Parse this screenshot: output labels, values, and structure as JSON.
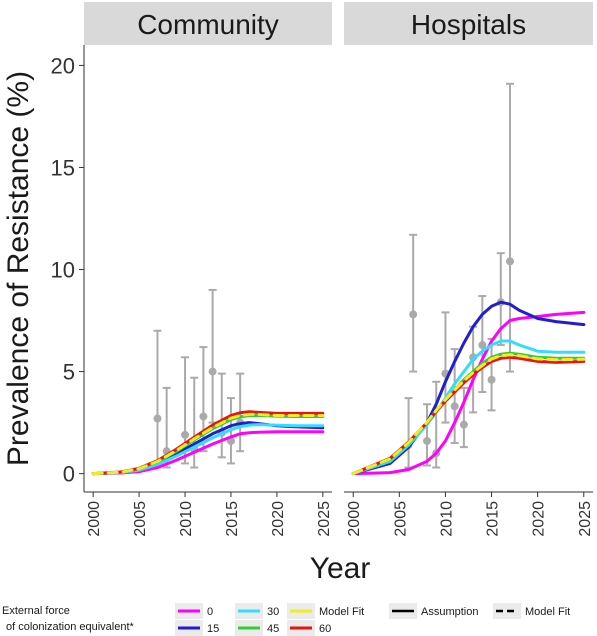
{
  "chart_data": {
    "type": "line",
    "ylabel": "Prevalence of Resistance (%)",
    "xlabel": "Year",
    "xlim": [
      1999,
      2026
    ],
    "ylim": [
      -0.9,
      21
    ],
    "x_ticks": [
      2000,
      2005,
      2010,
      2015,
      2020,
      2025
    ],
    "y_ticks": [
      0,
      5,
      10,
      15,
      20
    ],
    "grid": false,
    "panels": [
      {
        "title": "Community",
        "series": [
          {
            "name": "0",
            "color": "#ff00ff",
            "style": "solid",
            "x": [
              2000,
              2003,
              2005,
              2007,
              2009,
              2011,
              2013,
              2015,
              2016,
              2017,
              2018,
              2020,
              2022,
              2025
            ],
            "y": [
              0,
              0.03,
              0.1,
              0.3,
              0.65,
              1.05,
              1.45,
              1.8,
              1.95,
              2.0,
              2.03,
              2.05,
              2.05,
              2.05
            ]
          },
          {
            "name": "15",
            "color": "#1f1fcf",
            "style": "solid",
            "x": [
              2000,
              2003,
              2005,
              2007,
              2009,
              2011,
              2013,
              2015,
              2016,
              2017,
              2018,
              2020,
              2022,
              2025
            ],
            "y": [
              0,
              0.06,
              0.2,
              0.5,
              0.95,
              1.45,
              1.95,
              2.35,
              2.45,
              2.5,
              2.45,
              2.35,
              2.3,
              2.25
            ]
          },
          {
            "name": "30",
            "color": "#33ddff",
            "style": "solid",
            "x": [
              2000,
              2003,
              2005,
              2007,
              2009,
              2011,
              2013,
              2015,
              2016,
              2017,
              2018,
              2020,
              2022,
              2025
            ],
            "y": [
              0,
              0.05,
              0.17,
              0.45,
              0.85,
              1.3,
              1.75,
              2.15,
              2.3,
              2.38,
              2.4,
              2.38,
              2.35,
              2.35
            ]
          },
          {
            "name": "45",
            "color": "#33cc33",
            "style": "solid",
            "x": [
              2000,
              2003,
              2005,
              2007,
              2009,
              2011,
              2013,
              2015,
              2016,
              2017,
              2018,
              2020,
              2022,
              2025
            ],
            "y": [
              0,
              0.07,
              0.23,
              0.58,
              1.08,
              1.65,
              2.2,
              2.65,
              2.78,
              2.85,
              2.85,
              2.82,
              2.8,
              2.8
            ]
          },
          {
            "name": "60",
            "color": "#ee1111",
            "style": "solid",
            "x": [
              2000,
              2003,
              2005,
              2007,
              2009,
              2011,
              2013,
              2015,
              2016,
              2017,
              2018,
              2020,
              2022,
              2025
            ],
            "y": [
              0,
              0.08,
              0.26,
              0.64,
              1.18,
              1.78,
              2.38,
              2.85,
              2.98,
              3.03,
              3.0,
              2.95,
              2.95,
              2.95
            ]
          },
          {
            "name": "Model Fit",
            "color": "#eeee22",
            "style": "dashed",
            "x": [
              2000,
              2003,
              2005,
              2007,
              2009,
              2011,
              2013,
              2015,
              2016,
              2017,
              2018,
              2020,
              2022,
              2025
            ],
            "y": [
              0,
              0.07,
              0.24,
              0.6,
              1.12,
              1.7,
              2.26,
              2.72,
              2.85,
              2.9,
              2.9,
              2.85,
              2.85,
              2.85
            ]
          }
        ],
        "observations": [
          {
            "x": 2007,
            "y": 2.7,
            "low": 0.3,
            "high": 7.0
          },
          {
            "x": 2008,
            "y": 1.1,
            "low": 0.3,
            "high": 4.2
          },
          {
            "x": 2010,
            "y": 1.9,
            "low": 0.5,
            "high": 5.7
          },
          {
            "x": 2011,
            "y": 1.2,
            "low": 0.3,
            "high": 4.7
          },
          {
            "x": 2012,
            "y": 2.8,
            "low": 1.1,
            "high": 6.2
          },
          {
            "x": 2013,
            "y": 5.0,
            "low": 2.5,
            "high": 9.0
          },
          {
            "x": 2014,
            "y": 2.0,
            "low": 0.8,
            "high": 4.9
          },
          {
            "x": 2015,
            "y": 1.6,
            "low": 0.5,
            "high": 3.7
          },
          {
            "x": 2016,
            "y": 2.5,
            "low": 1.1,
            "high": 4.9
          }
        ]
      },
      {
        "title": "Hospitals",
        "series": [
          {
            "name": "0",
            "color": "#ff00ff",
            "style": "solid",
            "x": [
              2000,
              2004,
              2006,
              2008,
              2009,
              2010,
              2011,
              2012,
              2013,
              2014,
              2015,
              2016,
              2017,
              2018,
              2020,
              2022,
              2025
            ],
            "y": [
              0,
              0.05,
              0.2,
              0.6,
              1.0,
              1.6,
              2.5,
              3.5,
              4.6,
              5.6,
              6.5,
              7.1,
              7.5,
              7.6,
              7.7,
              7.8,
              7.9
            ]
          },
          {
            "name": "15",
            "color": "#1f1fcf",
            "style": "solid",
            "x": [
              2000,
              2004,
              2006,
              2008,
              2009,
              2010,
              2011,
              2012,
              2013,
              2014,
              2015,
              2016,
              2017,
              2018,
              2020,
              2022,
              2025
            ],
            "y": [
              0,
              0.5,
              1.3,
              2.5,
              3.4,
              4.5,
              5.5,
              6.4,
              7.2,
              7.8,
              8.2,
              8.4,
              8.3,
              8.0,
              7.6,
              7.45,
              7.3
            ]
          },
          {
            "name": "30",
            "color": "#33ddff",
            "style": "solid",
            "x": [
              2000,
              2004,
              2006,
              2008,
              2009,
              2010,
              2011,
              2012,
              2013,
              2014,
              2015,
              2016,
              2017,
              2018,
              2020,
              2022,
              2025
            ],
            "y": [
              0,
              0.6,
              1.4,
              2.4,
              3.0,
              3.7,
              4.4,
              5.0,
              5.6,
              6.0,
              6.3,
              6.5,
              6.5,
              6.3,
              6.0,
              5.95,
              5.95
            ]
          },
          {
            "name": "45",
            "color": "#33cc33",
            "style": "solid",
            "x": [
              2000,
              2004,
              2006,
              2008,
              2009,
              2010,
              2011,
              2012,
              2013,
              2014,
              2015,
              2016,
              2017,
              2018,
              2020,
              2022,
              2025
            ],
            "y": [
              0,
              0.7,
              1.5,
              2.5,
              3.1,
              3.6,
              4.1,
              4.6,
              5.0,
              5.4,
              5.7,
              5.85,
              5.9,
              5.85,
              5.7,
              5.65,
              5.65
            ]
          },
          {
            "name": "60",
            "color": "#ee1111",
            "style": "solid",
            "x": [
              2000,
              2004,
              2006,
              2008,
              2009,
              2010,
              2011,
              2012,
              2013,
              2014,
              2015,
              2016,
              2017,
              2018,
              2020,
              2022,
              2025
            ],
            "y": [
              0,
              0.75,
              1.55,
              2.5,
              3.05,
              3.55,
              4.0,
              4.45,
              4.85,
              5.2,
              5.5,
              5.65,
              5.7,
              5.65,
              5.5,
              5.45,
              5.5
            ]
          },
          {
            "name": "Model Fit",
            "color": "#eeee22",
            "style": "dashed",
            "x": [
              2000,
              2004,
              2006,
              2008,
              2009,
              2010,
              2011,
              2012,
              2013,
              2014,
              2015,
              2016,
              2017,
              2018,
              2020,
              2022,
              2025
            ],
            "y": [
              0,
              0.72,
              1.52,
              2.52,
              3.1,
              3.62,
              4.1,
              4.55,
              4.95,
              5.3,
              5.62,
              5.78,
              5.82,
              5.78,
              5.62,
              5.58,
              5.6
            ]
          }
        ],
        "observations": [
          {
            "x": 2006,
            "y": 1.4,
            "low": 0.3,
            "high": 3.7
          },
          {
            "x": 2006.5,
            "y": 7.8,
            "low": 5.0,
            "high": 11.7
          },
          {
            "x": 2008,
            "y": 1.6,
            "low": 0.4,
            "high": 3.4
          },
          {
            "x": 2009,
            "y": 1.0,
            "low": 0.3,
            "high": 4.5
          },
          {
            "x": 2010,
            "y": 4.9,
            "low": 2.5,
            "high": 7.9
          },
          {
            "x": 2011,
            "y": 3.3,
            "low": 1.5,
            "high": 6.1
          },
          {
            "x": 2012,
            "y": 2.4,
            "low": 1.3,
            "high": 4.2
          },
          {
            "x": 2013,
            "y": 5.7,
            "low": 3.0,
            "high": 7.2
          },
          {
            "x": 2014,
            "y": 6.3,
            "low": 4.0,
            "high": 8.7
          },
          {
            "x": 2015,
            "y": 4.6,
            "low": 3.1,
            "high": 6.6
          },
          {
            "x": 2016,
            "y": 8.4,
            "low": 6.3,
            "high": 10.8
          },
          {
            "x": 2017,
            "y": 10.4,
            "low": 5.0,
            "high": 19.1
          }
        ]
      }
    ],
    "legend": {
      "position": "bottom",
      "title_line1": "External force",
      "title_line2": "of colonization equivalent*",
      "color_items": [
        {
          "label": "0",
          "color": "#ff00ff"
        },
        {
          "label": "15",
          "color": "#1f1fcf"
        },
        {
          "label": "30",
          "color": "#33ddff"
        },
        {
          "label": "45",
          "color": "#33cc33"
        },
        {
          "label": "Model Fit",
          "color": "#eeee22"
        },
        {
          "label": "60",
          "color": "#ee1111"
        }
      ],
      "linetype_items": [
        {
          "label": "Assumption",
          "style": "solid"
        },
        {
          "label": "Model Fit",
          "style": "dashed"
        }
      ]
    }
  }
}
